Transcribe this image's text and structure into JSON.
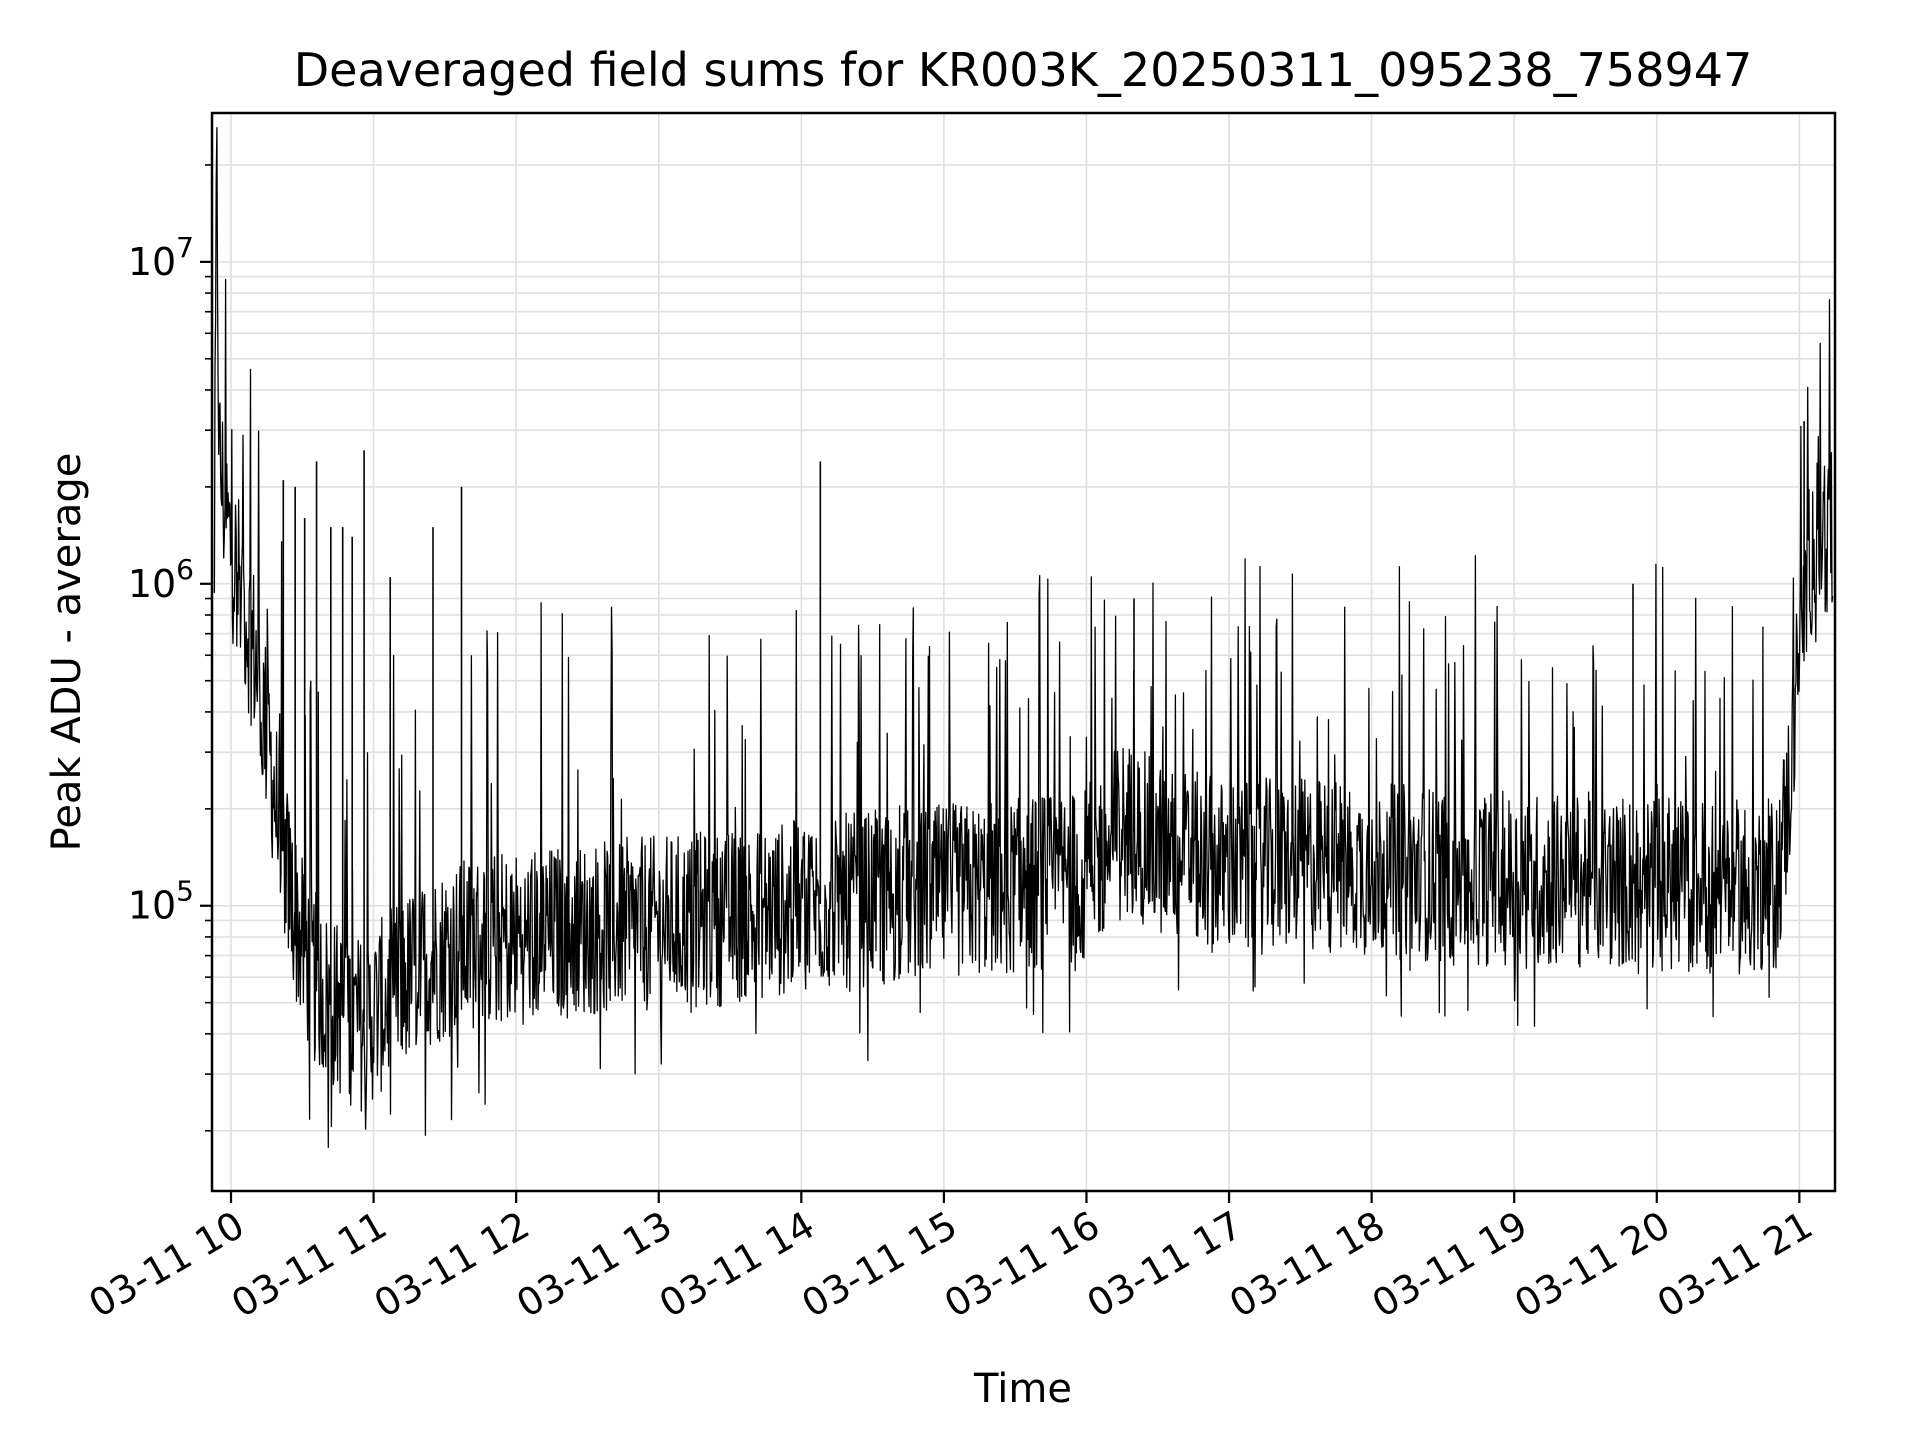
{
  "chart_data": {
    "type": "line",
    "title": "Deaveraged field sums for KR003K_20250311_095238_758947",
    "xlabel": "Time",
    "ylabel": "Peak ADU - average",
    "x_ticks": [
      "03-11 10",
      "03-11 11",
      "03-11 12",
      "03-11 13",
      "03-11 14",
      "03-11 15",
      "03-11 16",
      "03-11 17",
      "03-11 18",
      "03-11 19",
      "03-11 20",
      "03-11 21"
    ],
    "y_ticks": [
      {
        "base": "10",
        "exp": "5",
        "value": 100000
      },
      {
        "base": "10",
        "exp": "6",
        "value": 1000000
      },
      {
        "base": "10",
        "exp": "7",
        "value": 10000000
      }
    ],
    "x_range": [
      "2025-03-11 09:52",
      "2025-03-11 21:15"
    ],
    "ylim": [
      13000,
      29000000
    ],
    "y_scale": "log",
    "grid": true,
    "line_color": "#000000",
    "grid_color": "#e0e0e0",
    "series": [
      {
        "comment_free_values": true,
        "points": [
          [
            "2025-03-11 09:53",
            1200000
          ],
          [
            "2025-03-11 09:54",
            20000000
          ],
          [
            "2025-03-11 09:55",
            2500000
          ],
          [
            "2025-03-11 09:57",
            1800000
          ],
          [
            "2025-03-11 10:00",
            1300000
          ],
          [
            "2025-03-11 10:05",
            900000
          ],
          [
            "2025-03-11 10:10",
            600000
          ],
          [
            "2025-03-11 10:15",
            350000
          ],
          [
            "2025-03-11 10:20",
            180000
          ],
          [
            "2025-03-11 10:25",
            110000
          ],
          [
            "2025-03-11 10:30",
            75000
          ],
          [
            "2025-03-11 10:35",
            60000
          ],
          [
            "2025-03-11 10:40",
            52000
          ],
          [
            "2025-03-11 10:45",
            48000
          ],
          [
            "2025-03-11 10:50",
            45000
          ],
          [
            "2025-03-11 10:55",
            43000
          ],
          [
            "2025-03-11 11:00",
            46000
          ],
          [
            "2025-03-11 11:10",
            55000
          ],
          [
            "2025-03-11 11:20",
            65000
          ],
          [
            "2025-03-11 11:30",
            72000
          ],
          [
            "2025-03-11 11:45",
            78000
          ],
          [
            "2025-03-11 12:00",
            80000
          ],
          [
            "2025-03-11 12:30",
            85000
          ],
          [
            "2025-03-11 13:00",
            88000
          ],
          [
            "2025-03-11 13:30",
            92000
          ],
          [
            "2025-03-11 14:00",
            100000
          ],
          [
            "2025-03-11 14:30",
            105000
          ],
          [
            "2025-03-11 15:00",
            110000
          ],
          [
            "2025-03-11 15:30",
            115000
          ],
          [
            "2025-03-11 16:00",
            125000
          ],
          [
            "2025-03-11 16:15",
            180000
          ],
          [
            "2025-03-11 16:30",
            150000
          ],
          [
            "2025-03-11 17:00",
            130000
          ],
          [
            "2025-03-11 17:30",
            135000
          ],
          [
            "2025-03-11 18:00",
            130000
          ],
          [
            "2025-03-11 18:30",
            125000
          ],
          [
            "2025-03-11 19:00",
            120000
          ],
          [
            "2025-03-11 19:30",
            120000
          ],
          [
            "2025-03-11 20:00",
            118000
          ],
          [
            "2025-03-11 20:30",
            115000
          ],
          [
            "2025-03-11 20:50",
            115000
          ],
          [
            "2025-03-11 20:55",
            200000
          ],
          [
            "2025-03-11 21:00",
            600000
          ],
          [
            "2025-03-11 21:05",
            1300000
          ],
          [
            "2025-03-11 21:10",
            1500000
          ],
          [
            "2025-03-11 21:14",
            1400000
          ]
        ],
        "spikes": [
          [
            "2025-03-11 10:22",
            2100000
          ],
          [
            "2025-03-11 10:27",
            2000000
          ],
          [
            "2025-03-11 10:31",
            1600000
          ],
          [
            "2025-03-11 10:36",
            2400000
          ],
          [
            "2025-03-11 10:42",
            1500000
          ],
          [
            "2025-03-11 10:47",
            1500000
          ],
          [
            "2025-03-11 10:51",
            1400000
          ],
          [
            "2025-03-11 10:56",
            2600000
          ],
          [
            "2025-03-11 11:07",
            1050000
          ],
          [
            "2025-03-11 11:25",
            1500000
          ],
          [
            "2025-03-11 11:37",
            2000000
          ],
          [
            "2025-03-11 14:08",
            2400000
          ],
          [
            "2025-03-11 16:20",
            900000
          ],
          [
            "2025-03-11 19:50",
            1000000
          ],
          [
            "2025-03-11 21:02",
            3200000
          ]
        ]
      }
    ]
  }
}
